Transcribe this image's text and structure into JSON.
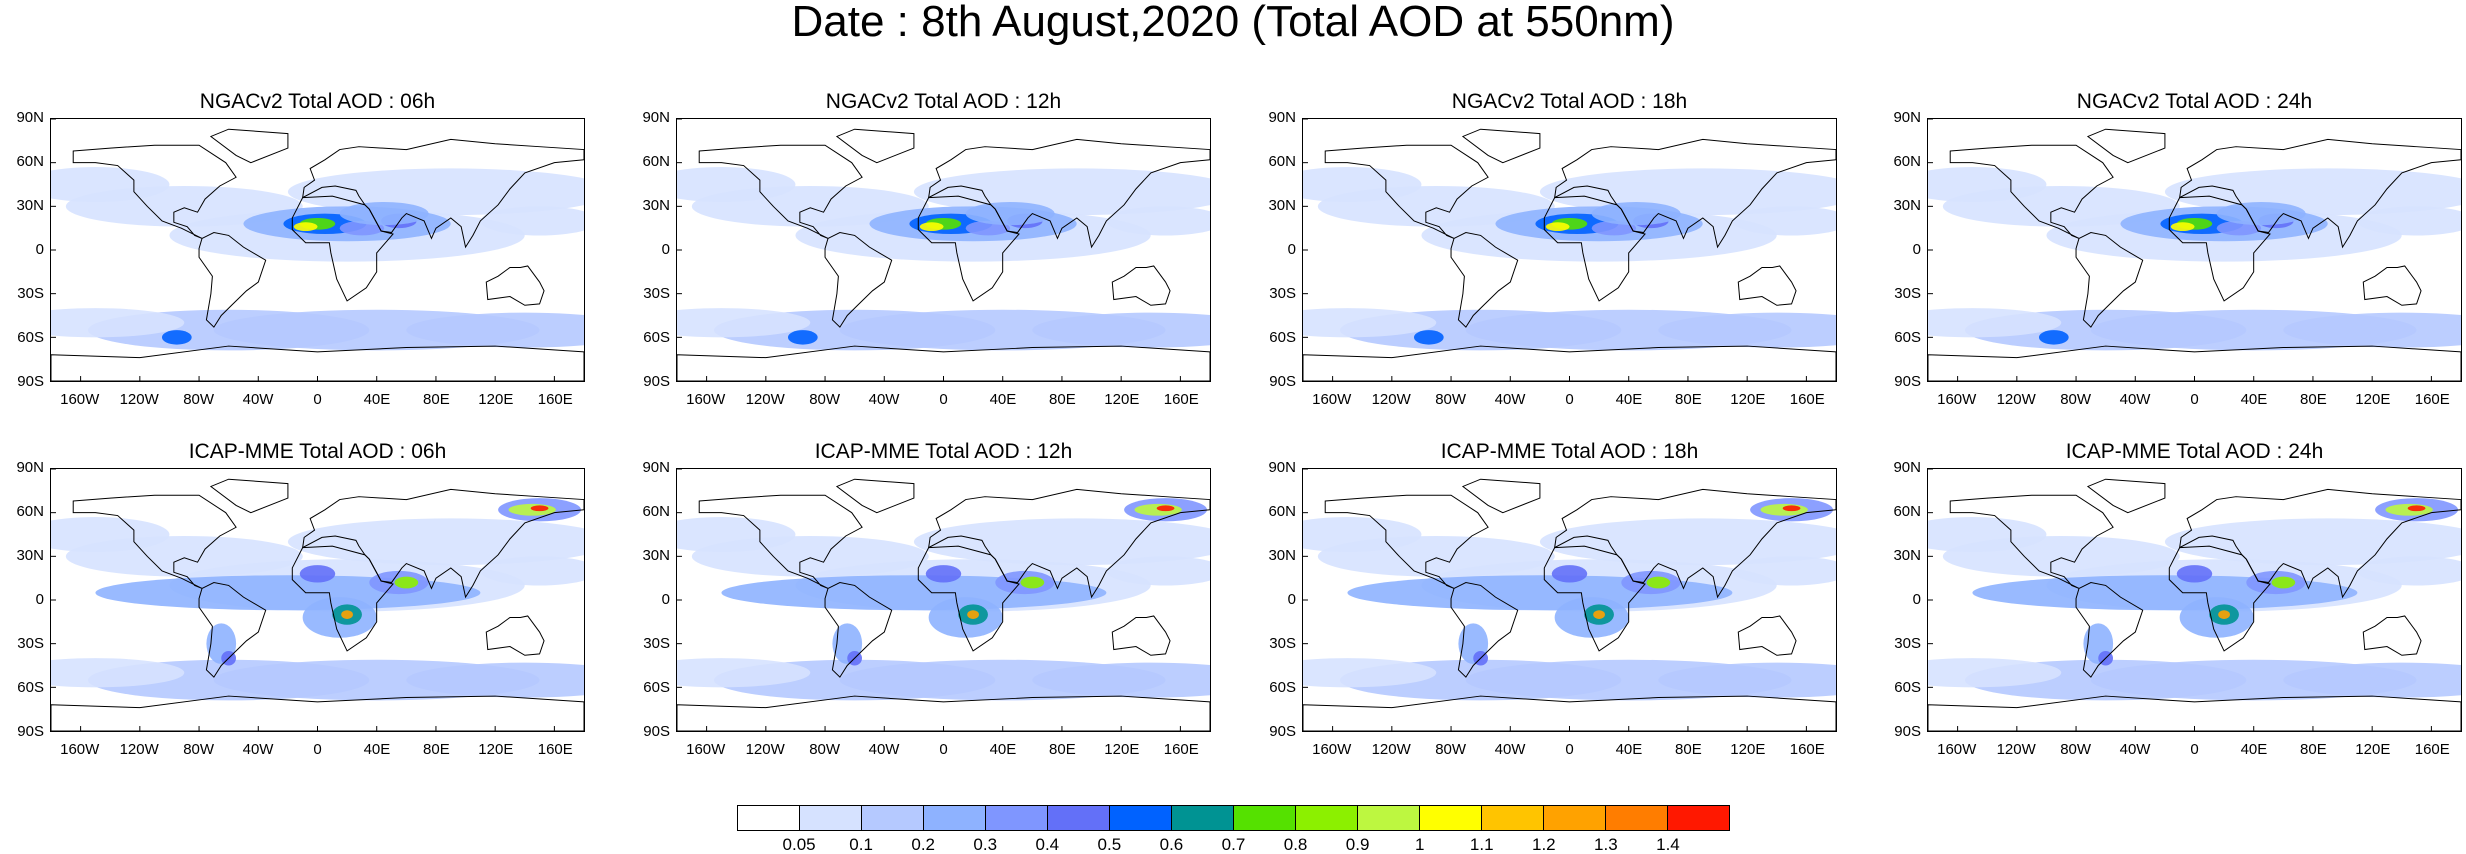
{
  "title": "Date : 8th August,2020 (Total AOD at 550nm)",
  "y_ticks": [
    "90N",
    "60N",
    "30N",
    "0",
    "30S",
    "60S",
    "90S"
  ],
  "x_ticks": [
    "160W",
    "120W",
    "80W",
    "40W",
    "0",
    "40E",
    "80E",
    "120E",
    "160E"
  ],
  "panels": [
    {
      "title": "NGACv2 Total AOD : 06h",
      "model": "NGACv2",
      "hour": "06h"
    },
    {
      "title": "NGACv2 Total AOD : 12h",
      "model": "NGACv2",
      "hour": "12h"
    },
    {
      "title": "NGACv2 Total AOD : 18h",
      "model": "NGACv2",
      "hour": "18h"
    },
    {
      "title": "NGACv2 Total AOD : 24h",
      "model": "NGACv2",
      "hour": "24h"
    },
    {
      "title": "ICAP-MME Total AOD : 06h",
      "model": "ICAP-MME",
      "hour": "06h"
    },
    {
      "title": "ICAP-MME Total AOD : 12h",
      "model": "ICAP-MME",
      "hour": "12h"
    },
    {
      "title": "ICAP-MME Total AOD : 18h",
      "model": "ICAP-MME",
      "hour": "18h"
    },
    {
      "title": "ICAP-MME Total AOD : 24h",
      "model": "ICAP-MME",
      "hour": "24h"
    }
  ],
  "colorbar": {
    "labels": [
      "0.05",
      "0.1",
      "0.2",
      "0.3",
      "0.4",
      "0.5",
      "0.6",
      "0.7",
      "0.8",
      "0.9",
      "1",
      "1.1",
      "1.2",
      "1.3",
      "1.4"
    ],
    "colors": [
      "#ffffff",
      "#d6e2ff",
      "#b5c9ff",
      "#8eb2ff",
      "#7f96ff",
      "#6370f8",
      "#0062ff",
      "#009393",
      "#55e100",
      "#8cf000",
      "#bdf740",
      "#ffff00",
      "#ffc400",
      "#ffa200",
      "#ff7d00",
      "#ff1800"
    ]
  }
}
